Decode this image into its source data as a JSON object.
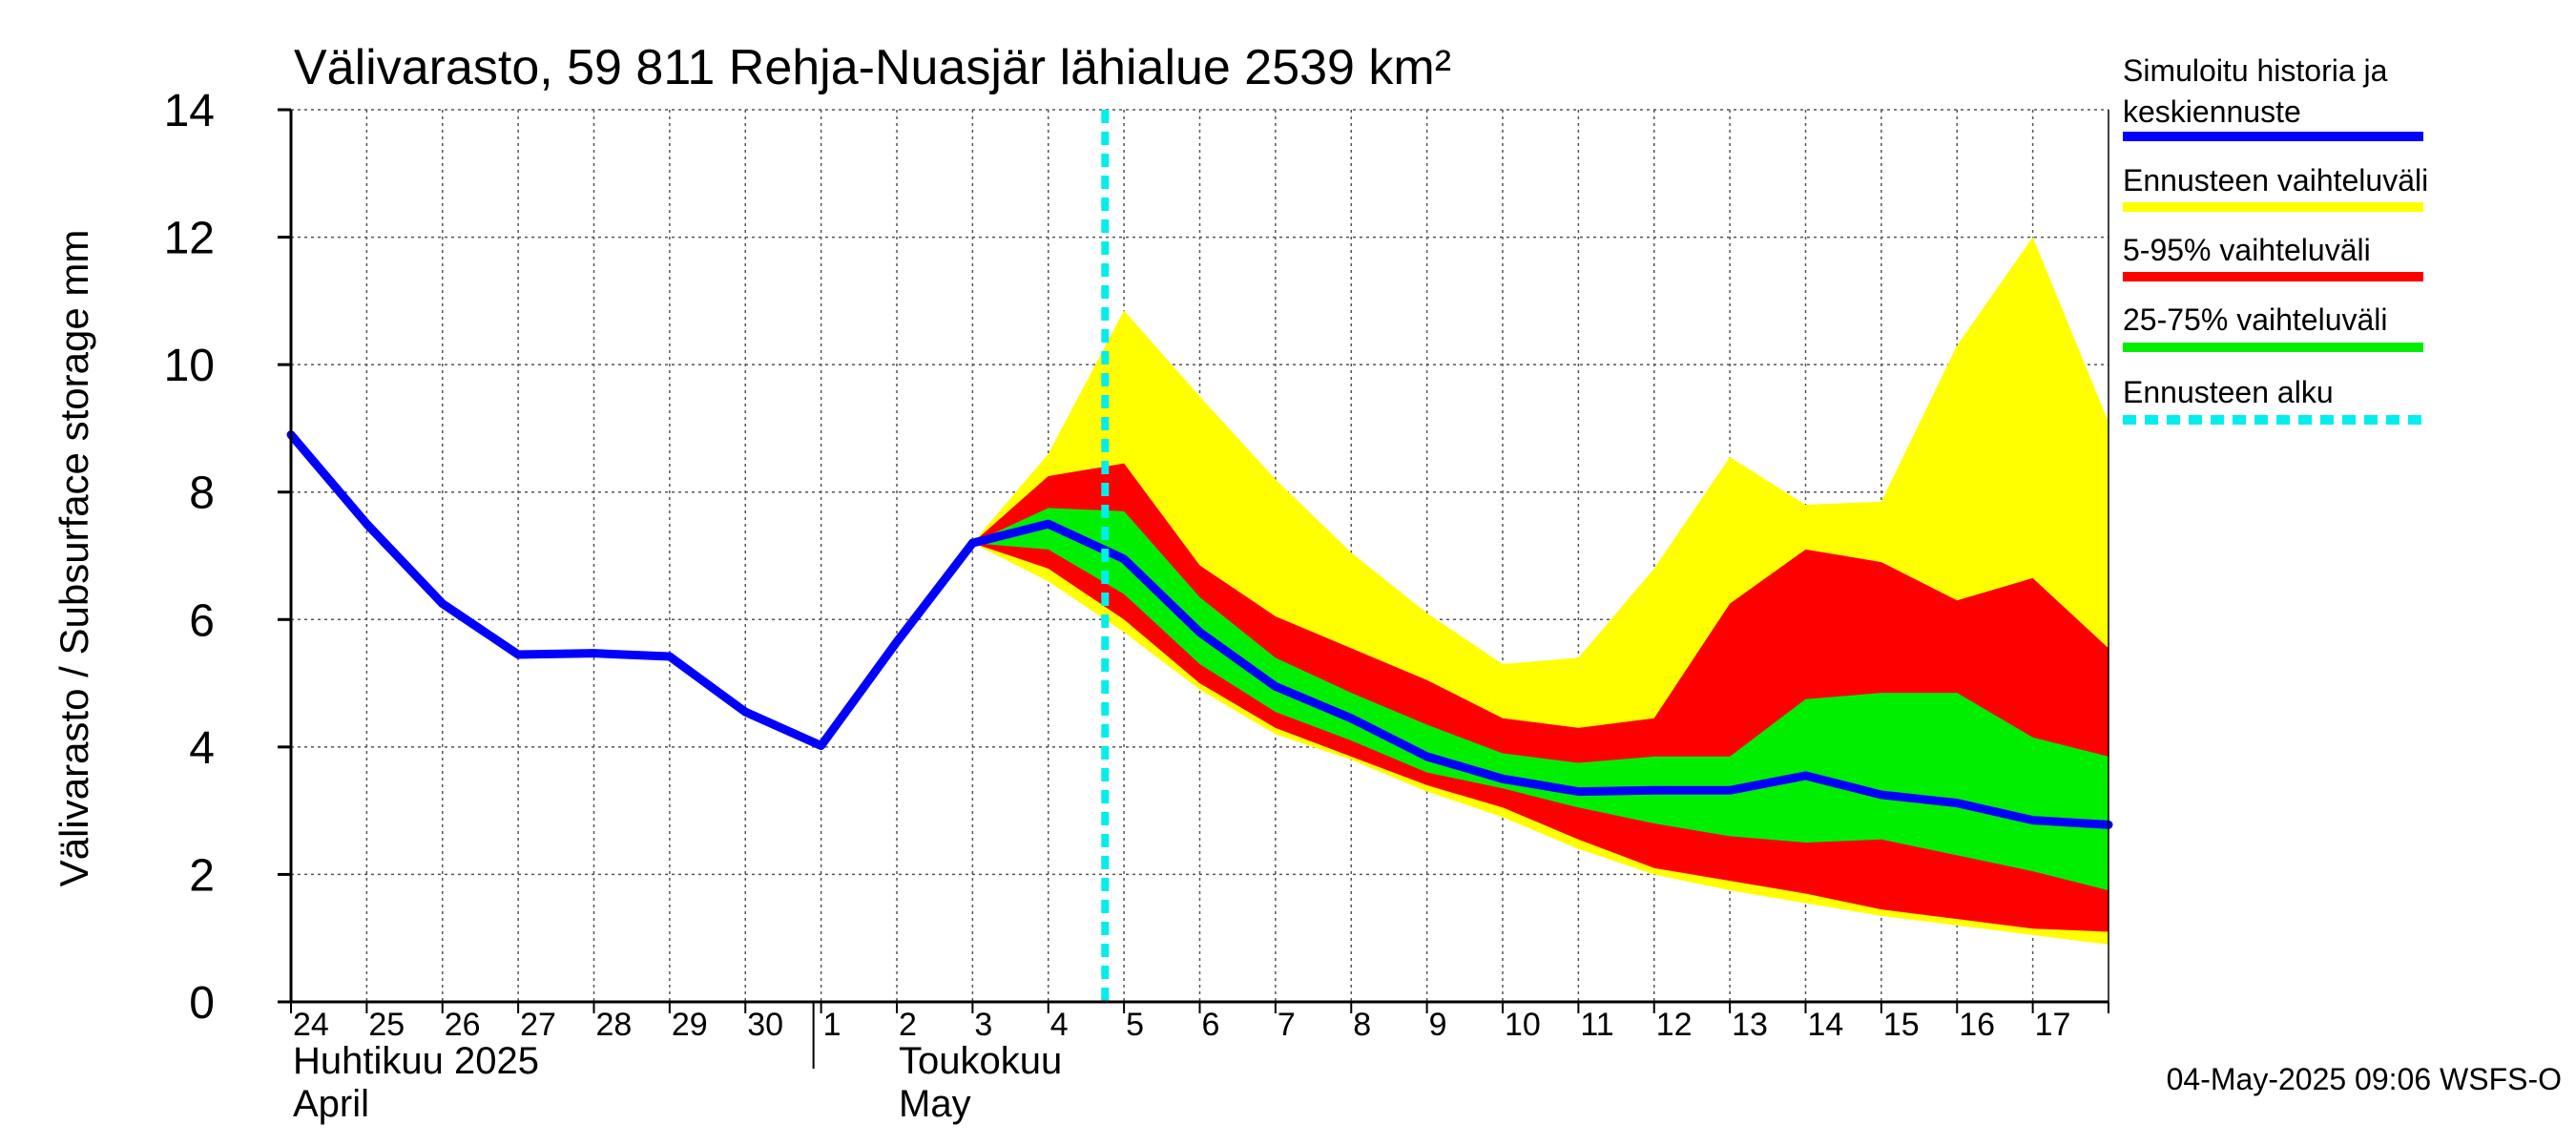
{
  "chart_data": {
    "type": "area",
    "title": "Välivarasto, 59 811 Rehja-Nuasjär lähialue 2539 km²",
    "ylabel": "Välivarasto / Subsurface storage  mm",
    "ylim": [
      0,
      14
    ],
    "yticks": [
      0,
      2,
      4,
      6,
      8,
      10,
      12,
      14
    ],
    "x_start_date": "2025-04-24",
    "day_labels": [
      "24",
      "25",
      "26",
      "27",
      "28",
      "29",
      "30",
      "1",
      "2",
      "3",
      "4",
      "5",
      "6",
      "7",
      "8",
      "9",
      "10",
      "11",
      "12",
      "13",
      "14",
      "15",
      "16",
      "17"
    ],
    "month_labels": [
      {
        "fi": "Huhtikuu  2025",
        "en": "April"
      },
      {
        "fi": "Toukokuu",
        "en": "May"
      }
    ],
    "forecast_start_day": 10.75,
    "history": {
      "name": "Simuloitu historia ja keskiennuste",
      "x": [
        0,
        1,
        2,
        3,
        4,
        5,
        6,
        7,
        8,
        9
      ],
      "y": [
        8.9,
        7.5,
        6.25,
        5.45,
        5.47,
        5.42,
        4.55,
        4.02,
        5.65,
        7.2
      ]
    },
    "forecast_x": [
      9,
      10,
      11,
      12,
      13,
      14,
      15,
      16,
      17,
      18,
      19,
      20,
      21,
      22,
      23,
      24
    ],
    "median": [
      7.2,
      7.5,
      6.95,
      5.8,
      4.95,
      4.45,
      3.85,
      3.5,
      3.3,
      3.32,
      3.32,
      3.55,
      3.25,
      3.12,
      2.85,
      2.78
    ],
    "range_min": [
      7.2,
      6.6,
      5.8,
      4.9,
      4.2,
      3.8,
      3.3,
      2.9,
      2.4,
      2.0,
      1.75,
      1.55,
      1.35,
      1.2,
      1.05,
      0.9
    ],
    "range_max": [
      7.2,
      8.6,
      10.85,
      9.5,
      8.2,
      7.05,
      6.1,
      5.3,
      5.4,
      6.8,
      8.55,
      7.8,
      7.85,
      10.3,
      12.0,
      9.1
    ],
    "p5": [
      7.2,
      6.8,
      6.0,
      5.0,
      4.3,
      3.85,
      3.4,
      3.05,
      2.55,
      2.1,
      1.9,
      1.7,
      1.45,
      1.3,
      1.15,
      1.1
    ],
    "p95": [
      7.2,
      8.25,
      8.45,
      6.85,
      6.05,
      5.55,
      5.05,
      4.45,
      4.3,
      4.45,
      6.25,
      7.1,
      6.9,
      6.3,
      6.65,
      5.55
    ],
    "p25": [
      7.2,
      7.1,
      6.4,
      5.3,
      4.55,
      4.1,
      3.6,
      3.35,
      3.05,
      2.8,
      2.6,
      2.5,
      2.55,
      2.3,
      2.05,
      1.75
    ],
    "p75": [
      7.2,
      7.75,
      7.7,
      6.35,
      5.4,
      4.85,
      4.35,
      3.9,
      3.75,
      3.85,
      3.85,
      4.75,
      4.85,
      4.85,
      4.15,
      3.85
    ],
    "legend": [
      {
        "label_lines": [
          "Simuloitu historia ja",
          "keskiennuste"
        ],
        "color": "#0000ff",
        "style": "solid"
      },
      {
        "label_lines": [
          "Ennusteen vaihteluväli"
        ],
        "color": "#ffff00",
        "style": "solid"
      },
      {
        "label_lines": [
          "5-95% vaihteluväli"
        ],
        "color": "#ff0000",
        "style": "solid"
      },
      {
        "label_lines": [
          "25-75% vaihteluväli"
        ],
        "color": "#00ee00",
        "style": "solid"
      },
      {
        "label_lines": [
          "Ennusteen alku"
        ],
        "color": "#00eeee",
        "style": "dashed"
      }
    ],
    "grid": true,
    "legend_position": "right"
  },
  "footer": "04-May-2025 09:06 WSFS-O"
}
